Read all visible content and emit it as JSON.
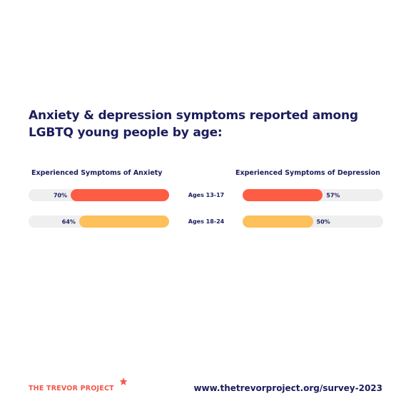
{
  "title": "Anxiety & depression symptoms reported among LGBTQ young people by age:",
  "chart_data": {
    "type": "bar",
    "categories": [
      "Ages 13-17",
      "Ages 18-24"
    ],
    "series": [
      {
        "name": "Experienced Symptoms of Anxiety",
        "values": [
          70,
          64
        ],
        "labels": [
          "70%",
          "64%"
        ]
      },
      {
        "name": "Experienced Symptoms of Depression",
        "values": [
          57,
          50
        ],
        "labels": [
          "57%",
          "50%"
        ]
      }
    ],
    "ylim": [
      0,
      100
    ],
    "colors": {
      "ages_13_17": "#ff5c44",
      "ages_18_24": "#fdc05b",
      "track": "#efefef",
      "text": "#1b1d5c"
    }
  },
  "footer": {
    "logo_text": "THE TREVOR PROJECT",
    "url": "www.thetrevorproject.org/survey-2023"
  }
}
